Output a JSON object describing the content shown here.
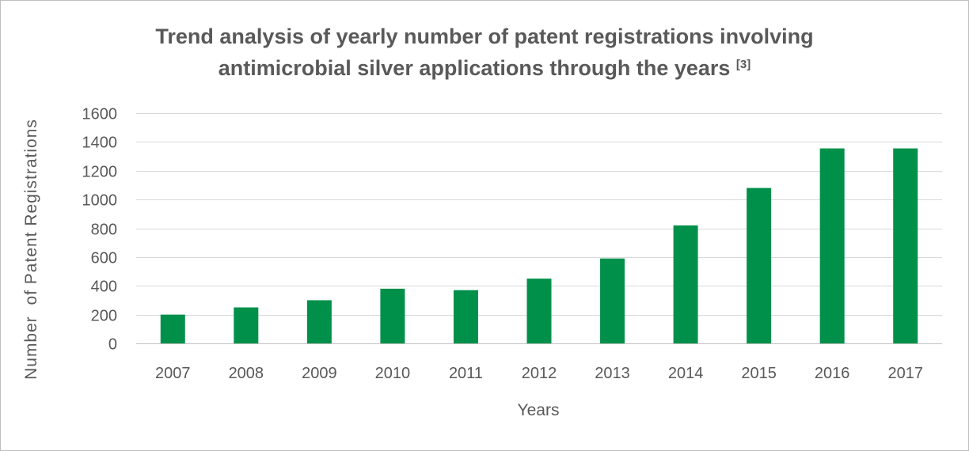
{
  "chart_data": {
    "type": "bar",
    "title": "Trend analysis of yearly number of patent registrations involving antimicrobial silver applications through the years",
    "title_line1": "Trend analysis of yearly number of patent registrations involving",
    "title_line2": "antimicrobial silver applications through the years",
    "title_superscript": "[3]",
    "xlabel": "Years",
    "ylabel": "Number  of Patent Registrations",
    "categories": [
      "2007",
      "2008",
      "2009",
      "2010",
      "2011",
      "2012",
      "2013",
      "2014",
      "2015",
      "2016",
      "2017"
    ],
    "values": [
      200,
      250,
      300,
      380,
      370,
      450,
      590,
      820,
      1080,
      1355,
      1355
    ],
    "ylim": [
      0,
      1600
    ],
    "yticks": [
      0,
      200,
      400,
      600,
      800,
      1000,
      1200,
      1400,
      1600
    ],
    "grid": true,
    "legend": "none",
    "bar_color": "#00904a",
    "grid_color": "#d9d9d9",
    "text_color": "#595959"
  }
}
